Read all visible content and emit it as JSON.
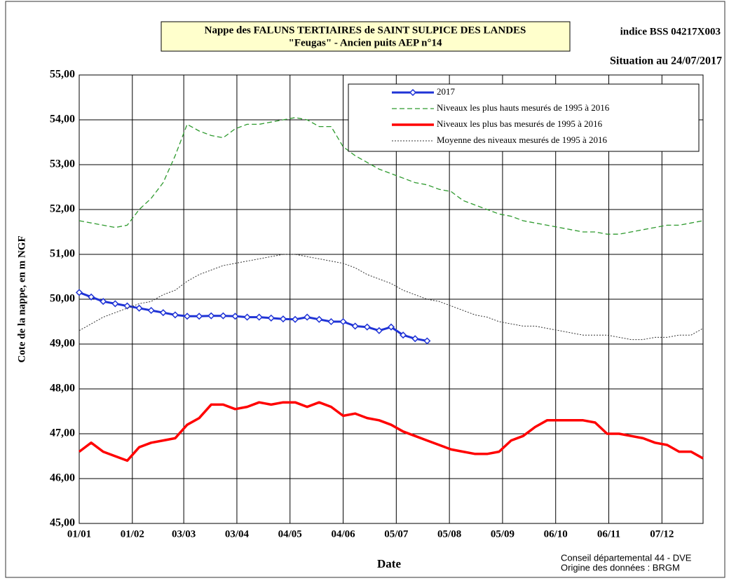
{
  "chart_data": {
    "type": "line",
    "title": "Nappe des FALUNS TERTIAIRES de SAINT SULPICE DES LANDES",
    "subtitle": "\"Feugas\" - Ancien puits AEP n°14",
    "station": "indice BSS 04217X003",
    "situation": "Situation au 24/07/2017",
    "y_label": "Cote de la nappe, en m NGF",
    "x_label": "Date",
    "credits": [
      "Conseil départemental 44  - DVE",
      "Origine des données : BRGM"
    ],
    "grid": true,
    "legend": "upper right",
    "xlim": [
      0,
      364
    ],
    "ylim": [
      45,
      55
    ],
    "xticks": [
      {
        "value": 0,
        "label": "01/01"
      },
      {
        "value": 31,
        "label": "01/02"
      },
      {
        "value": 61,
        "label": "03/03"
      },
      {
        "value": 92,
        "label": "03/04"
      },
      {
        "value": 123,
        "label": "04/05"
      },
      {
        "value": 154,
        "label": "04/06"
      },
      {
        "value": 185,
        "label": "05/07"
      },
      {
        "value": 216,
        "label": "05/08"
      },
      {
        "value": 247,
        "label": "05/09"
      },
      {
        "value": 278,
        "label": "06/10"
      },
      {
        "value": 309,
        "label": "06/11"
      },
      {
        "value": 340,
        "label": "07/12"
      }
    ],
    "yticks": [
      {
        "value": 45,
        "label": "45,00"
      },
      {
        "value": 46,
        "label": "46,00"
      },
      {
        "value": 47,
        "label": "47,00"
      },
      {
        "value": 48,
        "label": "48,00"
      },
      {
        "value": 49,
        "label": "49,00"
      },
      {
        "value": 50,
        "label": "50,00"
      },
      {
        "value": 51,
        "label": "51,00"
      },
      {
        "value": 52,
        "label": "52,00"
      },
      {
        "value": 53,
        "label": "53,00"
      },
      {
        "value": 54,
        "label": "54,00"
      },
      {
        "value": 55,
        "label": "55,00"
      }
    ],
    "x": [
      0,
      7,
      14,
      21,
      28,
      35,
      42,
      49,
      56,
      63,
      70,
      77,
      84,
      91,
      98,
      105,
      112,
      119,
      126,
      133,
      140,
      147,
      154,
      161,
      168,
      175,
      182,
      189,
      196,
      203,
      210,
      217,
      224,
      231,
      238,
      245,
      252,
      259,
      266,
      273,
      280,
      287,
      294,
      301,
      308,
      315,
      322,
      329,
      336,
      343,
      350,
      357,
      364
    ],
    "series": [
      {
        "name": "2017",
        "color": "#1f33d6",
        "style": "solid",
        "marker": "diamond",
        "values": [
          50.15,
          50.05,
          49.95,
          49.9,
          49.85,
          49.8,
          49.75,
          49.7,
          49.65,
          49.62,
          49.62,
          49.63,
          49.63,
          49.62,
          49.6,
          49.6,
          49.58,
          49.56,
          49.55,
          49.6,
          49.55,
          49.5,
          49.5,
          49.4,
          49.38,
          49.3,
          49.38,
          49.2,
          49.12,
          49.07,
          null,
          null,
          null,
          null,
          null,
          null,
          null,
          null,
          null,
          null,
          null,
          null,
          null,
          null,
          null,
          null,
          null,
          null,
          null,
          null,
          null,
          null,
          null
        ]
      },
      {
        "name": "Niveaux les plus hauts mesurés de 1995 à 2016",
        "color": "#2e9a2e",
        "style": "dashed",
        "values": [
          51.75,
          51.7,
          51.65,
          51.6,
          51.65,
          52.0,
          52.25,
          52.6,
          53.2,
          53.9,
          53.75,
          53.65,
          53.6,
          53.8,
          53.9,
          53.9,
          53.95,
          54.0,
          54.05,
          54.0,
          53.85,
          53.85,
          53.4,
          53.2,
          53.05,
          52.9,
          52.8,
          52.7,
          52.6,
          52.55,
          52.45,
          52.4,
          52.2,
          52.1,
          52.0,
          51.9,
          51.85,
          51.75,
          51.7,
          51.65,
          51.6,
          51.55,
          51.5,
          51.5,
          51.45,
          51.45,
          51.5,
          51.55,
          51.6,
          51.65,
          51.65,
          51.7,
          51.75
        ]
      },
      {
        "name": "Niveaux les plus bas mesurés de 1995 à 2016",
        "color": "#ff0000",
        "style": "thick",
        "values": [
          46.6,
          46.8,
          46.6,
          46.5,
          46.4,
          46.7,
          46.8,
          46.85,
          46.9,
          47.2,
          47.35,
          47.65,
          47.65,
          47.55,
          47.6,
          47.7,
          47.65,
          47.7,
          47.7,
          47.6,
          47.7,
          47.6,
          47.4,
          47.45,
          47.35,
          47.3,
          47.2,
          47.05,
          46.95,
          46.85,
          46.75,
          46.65,
          46.6,
          46.55,
          46.55,
          46.6,
          46.85,
          46.95,
          47.15,
          47.3,
          47.3,
          47.3,
          47.3,
          47.25,
          47.0,
          47.0,
          46.95,
          46.9,
          46.8,
          46.75,
          46.6,
          46.6,
          46.45
        ]
      },
      {
        "name": "Moyenne des niveaux mesurés de 1995 à 2016",
        "color": "#333333",
        "style": "dotted",
        "values": [
          49.3,
          49.45,
          49.6,
          49.7,
          49.8,
          49.9,
          49.95,
          50.1,
          50.2,
          50.4,
          50.55,
          50.65,
          50.75,
          50.8,
          50.85,
          50.9,
          50.95,
          51.0,
          51.0,
          50.95,
          50.9,
          50.85,
          50.8,
          50.7,
          50.55,
          50.45,
          50.35,
          50.2,
          50.1,
          50.0,
          49.95,
          49.85,
          49.75,
          49.65,
          49.6,
          49.5,
          49.45,
          49.4,
          49.4,
          49.35,
          49.3,
          49.25,
          49.2,
          49.2,
          49.2,
          49.15,
          49.1,
          49.1,
          49.15,
          49.15,
          49.2,
          49.2,
          49.35
        ]
      }
    ]
  }
}
